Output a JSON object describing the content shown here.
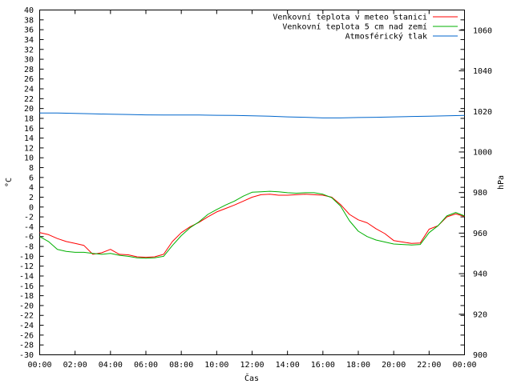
{
  "chart_data": {
    "type": "line",
    "xlabel": "Čas",
    "ylabel": "°C",
    "y2label": "hPa",
    "ylim": [
      -30,
      40
    ],
    "y2lim": [
      900,
      1070
    ],
    "xlim_hours": [
      0,
      24
    ],
    "x_tick_labels": [
      "00:00",
      "02:00",
      "04:00",
      "06:00",
      "08:00",
      "10:00",
      "12:00",
      "14:00",
      "16:00",
      "18:00",
      "20:00",
      "22:00",
      "00:00"
    ],
    "y_tick_values": [
      -30,
      -28,
      -26,
      -24,
      -22,
      -20,
      -18,
      -16,
      -14,
      -12,
      -10,
      -8,
      -6,
      -4,
      -2,
      0,
      2,
      4,
      6,
      8,
      10,
      12,
      14,
      16,
      18,
      20,
      22,
      24,
      26,
      28,
      30,
      32,
      34,
      36,
      38,
      40
    ],
    "y2_tick_values": [
      900,
      920,
      940,
      960,
      980,
      1000,
      1020,
      1040,
      1060
    ],
    "grid": false,
    "legend_position": "top-right",
    "colors": {
      "temp_station": "#ff0000",
      "temp_ground": "#00b000",
      "pressure": "#0066cc"
    },
    "series": [
      {
        "name": "Venkovní teplota v meteo stanici",
        "axis": "left",
        "color": "#ff0000",
        "x": [
          0,
          0.5,
          1,
          1.5,
          2,
          2.5,
          3,
          3.5,
          4,
          4.5,
          5,
          5.5,
          6,
          6.5,
          7,
          7.5,
          8,
          8.5,
          9,
          9.5,
          10,
          10.5,
          11,
          11.5,
          12,
          12.5,
          13,
          13.5,
          14,
          14.5,
          15,
          15.5,
          16,
          16.5,
          17,
          17.5,
          18,
          18.5,
          19,
          19.5,
          20,
          20.5,
          21,
          21.5,
          22,
          22.5,
          23,
          23.5,
          24
        ],
        "y": [
          -5.2,
          -5.6,
          -6.4,
          -7,
          -7.4,
          -7.8,
          -9.6,
          -9.3,
          -8.6,
          -9.6,
          -9.7,
          -10.1,
          -10.2,
          -10.1,
          -9.6,
          -7,
          -5.2,
          -4,
          -3.1,
          -2,
          -1,
          -0.3,
          0.4,
          1.2,
          2,
          2.5,
          2.6,
          2.4,
          2.4,
          2.5,
          2.6,
          2.5,
          2.4,
          2,
          0.5,
          -1.5,
          -2.6,
          -3.2,
          -4.4,
          -5.4,
          -6.8,
          -7.1,
          -7.4,
          -7.3,
          -4.5,
          -3.8,
          -2,
          -1.4,
          -1.9
        ]
      },
      {
        "name": "Venkovní teplota 5 cm nad zemí",
        "axis": "left",
        "color": "#00b000",
        "x": [
          0,
          0.5,
          1,
          1.5,
          2,
          2.5,
          3,
          3.5,
          4,
          4.5,
          5,
          5.5,
          6,
          6.5,
          7,
          7.5,
          8,
          8.5,
          9,
          9.5,
          10,
          10.5,
          11,
          11.5,
          12,
          12.5,
          13,
          13.5,
          14,
          14.5,
          15,
          15.5,
          16,
          16.5,
          17,
          17.5,
          18,
          18.5,
          19,
          19.5,
          20,
          20.5,
          21,
          21.5,
          22,
          22.5,
          23,
          23.5,
          24
        ],
        "y": [
          -6,
          -7,
          -8.6,
          -9,
          -9.2,
          -9.2,
          -9.4,
          -9.6,
          -9.4,
          -9.8,
          -10,
          -10.3,
          -10.4,
          -10.3,
          -10,
          -7.8,
          -5.8,
          -4.2,
          -3,
          -1.5,
          -0.5,
          0.4,
          1.2,
          2.2,
          3,
          3.1,
          3.2,
          3.1,
          2.9,
          2.8,
          2.9,
          2.9,
          2.6,
          1.9,
          0.2,
          -2.8,
          -4.9,
          -6,
          -6.7,
          -7.1,
          -7.5,
          -7.6,
          -7.7,
          -7.6,
          -5.2,
          -3.8,
          -1.8,
          -1.1,
          -1.8
        ]
      },
      {
        "name": "Atmosférický tlak",
        "axis": "right",
        "color": "#0066cc",
        "x": [
          0,
          1,
          2,
          3,
          4,
          5,
          6,
          7,
          8,
          9,
          10,
          11,
          12,
          13,
          14,
          15,
          16,
          17,
          18,
          19,
          20,
          21,
          22,
          23,
          24
        ],
        "y": [
          1019.2,
          1019.2,
          1019,
          1018.8,
          1018.6,
          1018.5,
          1018.3,
          1018.2,
          1018.2,
          1018.2,
          1018.1,
          1018,
          1017.8,
          1017.6,
          1017.3,
          1017.1,
          1016.8,
          1016.8,
          1017,
          1017.1,
          1017.3,
          1017.5,
          1017.6,
          1017.8,
          1018
        ]
      }
    ]
  }
}
